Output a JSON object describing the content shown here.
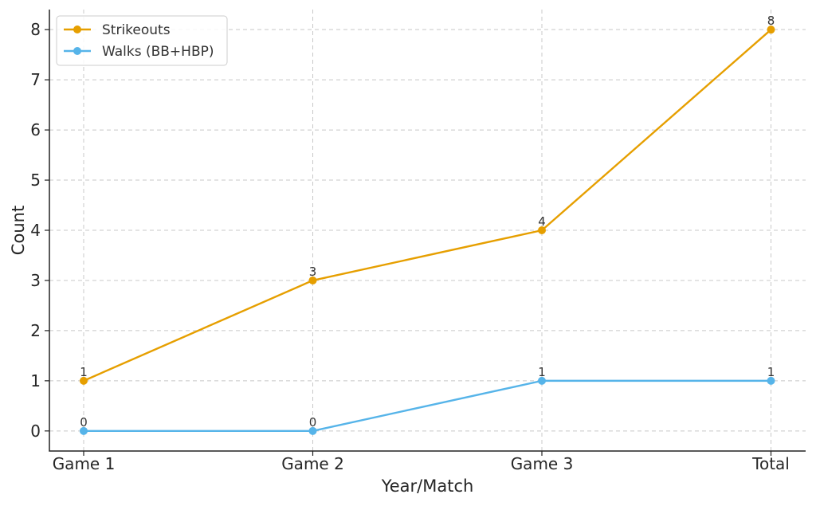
{
  "chart_data": {
    "type": "line",
    "categories": [
      "Game 1",
      "Game 2",
      "Game 3",
      "Total"
    ],
    "series": [
      {
        "name": "Strikeouts",
        "values": [
          1,
          3,
          4,
          8
        ],
        "color": "#E69F00"
      },
      {
        "name": "Walks (BB+HBP)",
        "values": [
          0,
          0,
          1,
          1
        ],
        "color": "#56B4E9"
      }
    ],
    "xlabel": "Year/Match",
    "ylabel": "Count",
    "ylim": [
      -0.4,
      8.4
    ],
    "yticks": [
      0,
      1,
      2,
      3,
      4,
      5,
      6,
      7,
      8
    ],
    "grid": true,
    "legend_position": "top-left",
    "data_labels": true
  }
}
